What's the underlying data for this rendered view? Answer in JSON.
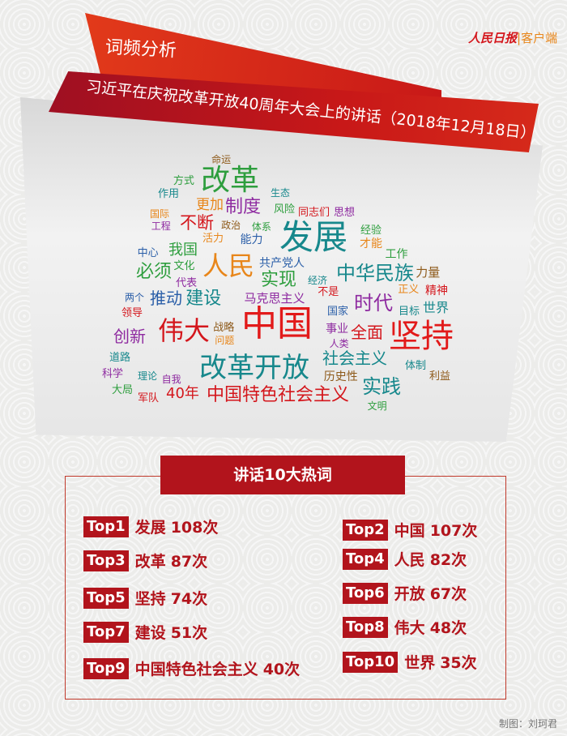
{
  "header": {
    "section_label": "词频分析",
    "speech_title": "习近平在庆祝改革开放40周年大会上的讲话（2018年12月18日）",
    "logo_name": "人民日报",
    "logo_suffix": "|客户端",
    "accent_color": "#b2141c"
  },
  "word_cloud": [
    {
      "text": "改革",
      "color": "#2e9e3e"
    },
    {
      "text": "制度",
      "color": "#8e2aa0"
    },
    {
      "text": "更加",
      "color": "#e8861a"
    },
    {
      "text": "不断",
      "color": "#d4161c"
    },
    {
      "text": "发展",
      "color": "#17888c"
    },
    {
      "text": "人民",
      "color": "#e8861a"
    },
    {
      "text": "我国",
      "color": "#2e9e3e"
    },
    {
      "text": "必须",
      "color": "#2e9e3e"
    },
    {
      "text": "实现",
      "color": "#2e9e3e"
    },
    {
      "text": "中华民族",
      "color": "#17888c"
    },
    {
      "text": "推动",
      "color": "#2a5ea8"
    },
    {
      "text": "建设",
      "color": "#17888c"
    },
    {
      "text": "时代",
      "color": "#8e2aa0"
    },
    {
      "text": "伟大",
      "color": "#d4161c"
    },
    {
      "text": "中国",
      "color": "#e21a1a"
    },
    {
      "text": "坚持",
      "color": "#e21a1a"
    },
    {
      "text": "创新",
      "color": "#8e2aa0"
    },
    {
      "text": "全面",
      "color": "#d4161c"
    },
    {
      "text": "改革开放",
      "color": "#17888c"
    },
    {
      "text": "实践",
      "color": "#17888c"
    },
    {
      "text": "中国特色社会主义",
      "color": "#d4161c"
    },
    {
      "text": "40年",
      "color": "#d4161c"
    },
    {
      "text": "社会主义",
      "color": "#17888c"
    },
    {
      "text": "世界",
      "color": "#17888c"
    },
    {
      "text": "历史性",
      "color": "#8e5a1a"
    },
    {
      "text": "共产党人",
      "color": "#2a5ea8"
    },
    {
      "text": "马克思主义",
      "color": "#8e2aa0"
    },
    {
      "text": "事业",
      "color": "#8e2aa0"
    },
    {
      "text": "风险",
      "color": "#2e9e3e"
    },
    {
      "text": "同志们",
      "color": "#d4161c"
    },
    {
      "text": "思想",
      "color": "#8e2aa0"
    },
    {
      "text": "经验",
      "color": "#2e9e3e"
    },
    {
      "text": "才能",
      "color": "#e8861a"
    },
    {
      "text": "工作",
      "color": "#2e9e3e"
    },
    {
      "text": "力量",
      "color": "#8e5a1a"
    },
    {
      "text": "精神",
      "color": "#d4161c"
    },
    {
      "text": "目标",
      "color": "#17888c"
    },
    {
      "text": "国家",
      "color": "#2a5ea8"
    },
    {
      "text": "体制",
      "color": "#17888c"
    },
    {
      "text": "利益",
      "color": "#8e5a1a"
    },
    {
      "text": "科学",
      "color": "#8e2aa0"
    },
    {
      "text": "道路",
      "color": "#17888c"
    },
    {
      "text": "大局",
      "color": "#2e9e3e"
    },
    {
      "text": "军队",
      "color": "#d4161c"
    },
    {
      "text": "战略",
      "color": "#8e5a1a"
    },
    {
      "text": "活力",
      "color": "#e8861a"
    },
    {
      "text": "能力",
      "color": "#2a5ea8"
    },
    {
      "text": "文化",
      "color": "#2e9e3e"
    },
    {
      "text": "代表",
      "color": "#8e2aa0"
    },
    {
      "text": "中心",
      "color": "#2a5ea8"
    },
    {
      "text": "作用",
      "color": "#17888c"
    },
    {
      "text": "方式",
      "color": "#2e9e3e"
    },
    {
      "text": "国际",
      "color": "#e8861a"
    },
    {
      "text": "工程",
      "color": "#8e2aa0"
    },
    {
      "text": "生态",
      "color": "#17888c"
    },
    {
      "text": "命运",
      "color": "#8e5a1a"
    },
    {
      "text": "问题",
      "color": "#e8861a"
    },
    {
      "text": "自我",
      "color": "#8e2aa0"
    },
    {
      "text": "理论",
      "color": "#17888c"
    },
    {
      "text": "领导",
      "color": "#d4161c"
    },
    {
      "text": "两个",
      "color": "#2a5ea8"
    },
    {
      "text": "正义",
      "color": "#e8861a"
    },
    {
      "text": "经济",
      "color": "#17888c"
    },
    {
      "text": "体系",
      "color": "#2e9e3e"
    },
    {
      "text": "政治",
      "color": "#8e5a1a"
    },
    {
      "text": "不是",
      "color": "#d4161c"
    },
    {
      "text": "人类",
      "color": "#8e2aa0"
    },
    {
      "text": "文明",
      "color": "#2e9e3e"
    }
  ],
  "top_words": {
    "heading": "讲话10大热词",
    "items": [
      {
        "rank": "Top1",
        "word": "发展",
        "count": "108次"
      },
      {
        "rank": "Top2",
        "word": "中国",
        "count": "107次"
      },
      {
        "rank": "Top3",
        "word": "改革",
        "count": "87次"
      },
      {
        "rank": "Top4",
        "word": "人民",
        "count": "82次"
      },
      {
        "rank": "Top5",
        "word": "坚持",
        "count": "74次"
      },
      {
        "rank": "Top6",
        "word": "开放",
        "count": "67次"
      },
      {
        "rank": "Top7",
        "word": "建设",
        "count": "51次"
      },
      {
        "rank": "Top8",
        "word": "伟大",
        "count": "48次"
      },
      {
        "rank": "Top9",
        "word": "中国特色社会主义",
        "count": "40次"
      },
      {
        "rank": "Top10",
        "word": "世界",
        "count": "35次"
      }
    ]
  },
  "footer": {
    "credit": "制图：刘珂君"
  }
}
